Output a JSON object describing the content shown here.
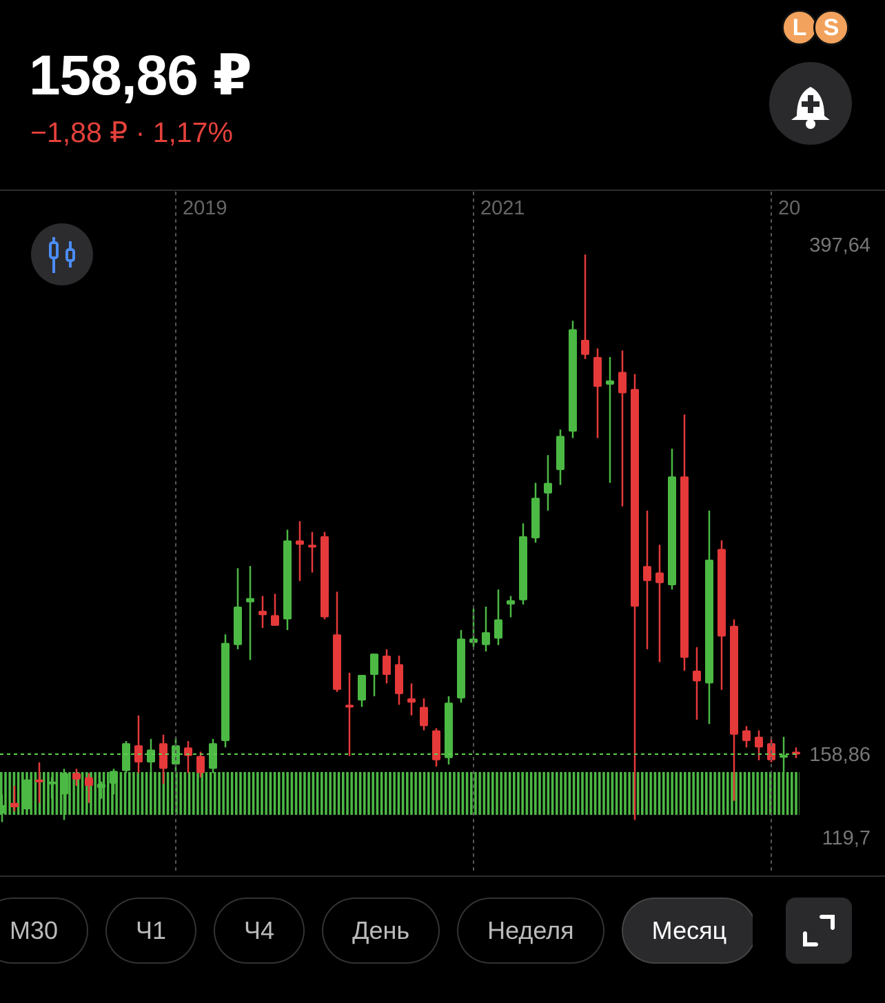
{
  "header": {
    "price": "158,86 ₽",
    "change": "−1,88 ₽ · 1,17%"
  },
  "avatars": [
    "L",
    "S"
  ],
  "chart_data": {
    "type": "candlestick",
    "x_labels": [
      "2019",
      "2021",
      "20"
    ],
    "up_color": "#4cb944",
    "down_color": "#e5393a",
    "ylim": [
      102.0,
      422.8
    ],
    "yticks": [
      {
        "value": 397.64,
        "label": "397,64"
      },
      {
        "value": 158.86,
        "label": "158,86"
      },
      {
        "value": 119.7,
        "label": "119,7"
      }
    ],
    "price_line": 158.86,
    "price_line_color": "#5fd14f",
    "candles": [
      {
        "open": 131,
        "high": 140,
        "low": 127,
        "close": 135
      },
      {
        "open": 136,
        "high": 144,
        "low": 132,
        "close": 134
      },
      {
        "open": 133,
        "high": 150,
        "low": 131,
        "close": 147
      },
      {
        "open": 147,
        "high": 155,
        "low": 136,
        "close": 146
      },
      {
        "open": 145,
        "high": 148,
        "low": 138,
        "close": 146
      },
      {
        "open": 140,
        "high": 152,
        "low": 128,
        "close": 150
      },
      {
        "open": 150,
        "high": 152,
        "low": 144,
        "close": 147
      },
      {
        "open": 148,
        "high": 150,
        "low": 136,
        "close": 144
      },
      {
        "open": 143,
        "high": 146,
        "low": 138,
        "close": 145
      },
      {
        "open": 145,
        "high": 152,
        "low": 140,
        "close": 151
      },
      {
        "open": 151,
        "high": 165,
        "low": 150,
        "close": 164
      },
      {
        "open": 163,
        "high": 177,
        "low": 150,
        "close": 155
      },
      {
        "open": 155,
        "high": 166,
        "low": 150,
        "close": 161
      },
      {
        "open": 164,
        "high": 168,
        "low": 145,
        "close": 152
      },
      {
        "open": 154,
        "high": 167,
        "low": 150,
        "close": 163
      },
      {
        "open": 162,
        "high": 165,
        "low": 150,
        "close": 158
      },
      {
        "open": 158,
        "high": 160,
        "low": 148,
        "close": 150
      },
      {
        "open": 152,
        "high": 166,
        "low": 150,
        "close": 164
      },
      {
        "open": 165,
        "high": 215,
        "low": 162,
        "close": 211
      },
      {
        "open": 210,
        "high": 246,
        "low": 208,
        "close": 228
      },
      {
        "open": 230,
        "high": 247,
        "low": 203,
        "close": 232
      },
      {
        "open": 226,
        "high": 233,
        "low": 218,
        "close": 224
      },
      {
        "open": 224,
        "high": 234,
        "low": 220,
        "close": 219
      },
      {
        "open": 222,
        "high": 264,
        "low": 217,
        "close": 259
      },
      {
        "open": 259,
        "high": 268,
        "low": 240,
        "close": 257
      },
      {
        "open": 257,
        "high": 263,
        "low": 244,
        "close": 256
      },
      {
        "open": 261,
        "high": 263,
        "low": 222,
        "close": 223
      },
      {
        "open": 215,
        "high": 235,
        "low": 188,
        "close": 189
      },
      {
        "open": 182,
        "high": 197,
        "low": 158,
        "close": 181
      },
      {
        "open": 184,
        "high": 194,
        "low": 181,
        "close": 196
      },
      {
        "open": 196,
        "high": 204,
        "low": 186,
        "close": 206
      },
      {
        "open": 205,
        "high": 208,
        "low": 192,
        "close": 196
      },
      {
        "open": 201,
        "high": 205,
        "low": 182,
        "close": 187
      },
      {
        "open": 185,
        "high": 192,
        "low": 177,
        "close": 183
      },
      {
        "open": 181,
        "high": 185,
        "low": 170,
        "close": 172
      },
      {
        "open": 170,
        "high": 171,
        "low": 153,
        "close": 156
      },
      {
        "open": 157,
        "high": 186,
        "low": 154,
        "close": 183
      },
      {
        "open": 185,
        "high": 217,
        "low": 183,
        "close": 213
      },
      {
        "open": 211,
        "high": 227,
        "low": 209,
        "close": 213
      },
      {
        "open": 210,
        "high": 228,
        "low": 207,
        "close": 216
      },
      {
        "open": 213,
        "high": 236,
        "low": 210,
        "close": 222
      },
      {
        "open": 229,
        "high": 233,
        "low": 223,
        "close": 231
      },
      {
        "open": 231,
        "high": 267,
        "low": 229,
        "close": 261
      },
      {
        "open": 260,
        "high": 286,
        "low": 258,
        "close": 279
      },
      {
        "open": 281,
        "high": 299,
        "low": 273,
        "close": 286
      },
      {
        "open": 292,
        "high": 311,
        "low": 285,
        "close": 308
      },
      {
        "open": 310,
        "high": 362,
        "low": 307,
        "close": 358
      },
      {
        "open": 353,
        "high": 393,
        "low": 344,
        "close": 346
      },
      {
        "open": 345,
        "high": 349,
        "low": 307,
        "close": 331
      },
      {
        "open": 332,
        "high": 345,
        "low": 286,
        "close": 334
      },
      {
        "open": 338,
        "high": 348,
        "low": 275,
        "close": 328
      },
      {
        "open": 330,
        "high": 337,
        "low": 128,
        "close": 228
      },
      {
        "open": 247,
        "high": 273,
        "low": 208,
        "close": 240
      },
      {
        "open": 244,
        "high": 257,
        "low": 202,
        "close": 239
      },
      {
        "open": 238,
        "high": 302,
        "low": 236,
        "close": 289
      },
      {
        "open": 289,
        "high": 318,
        "low": 198,
        "close": 204
      },
      {
        "open": 198,
        "high": 209,
        "low": 175,
        "close": 193
      },
      {
        "open": 192,
        "high": 273,
        "low": 173,
        "close": 250
      },
      {
        "open": 255,
        "high": 259,
        "low": 189,
        "close": 214
      },
      {
        "open": 219,
        "high": 222,
        "low": 137,
        "close": 168
      },
      {
        "open": 170,
        "high": 172,
        "low": 162,
        "close": 165
      },
      {
        "open": 167,
        "high": 170,
        "low": 156,
        "close": 162
      },
      {
        "open": 164,
        "high": 167,
        "low": 155,
        "close": 156
      },
      {
        "open": 158,
        "high": 167,
        "low": 150,
        "close": 158.5
      },
      {
        "open": 160,
        "high": 162,
        "low": 157,
        "close": 158.86
      }
    ]
  },
  "timeframes": [
    {
      "label": "М30"
    },
    {
      "label": "Ч1"
    },
    {
      "label": "Ч4"
    },
    {
      "label": "День"
    },
    {
      "label": "Неделя"
    },
    {
      "label": "Месяц",
      "active": true
    }
  ]
}
